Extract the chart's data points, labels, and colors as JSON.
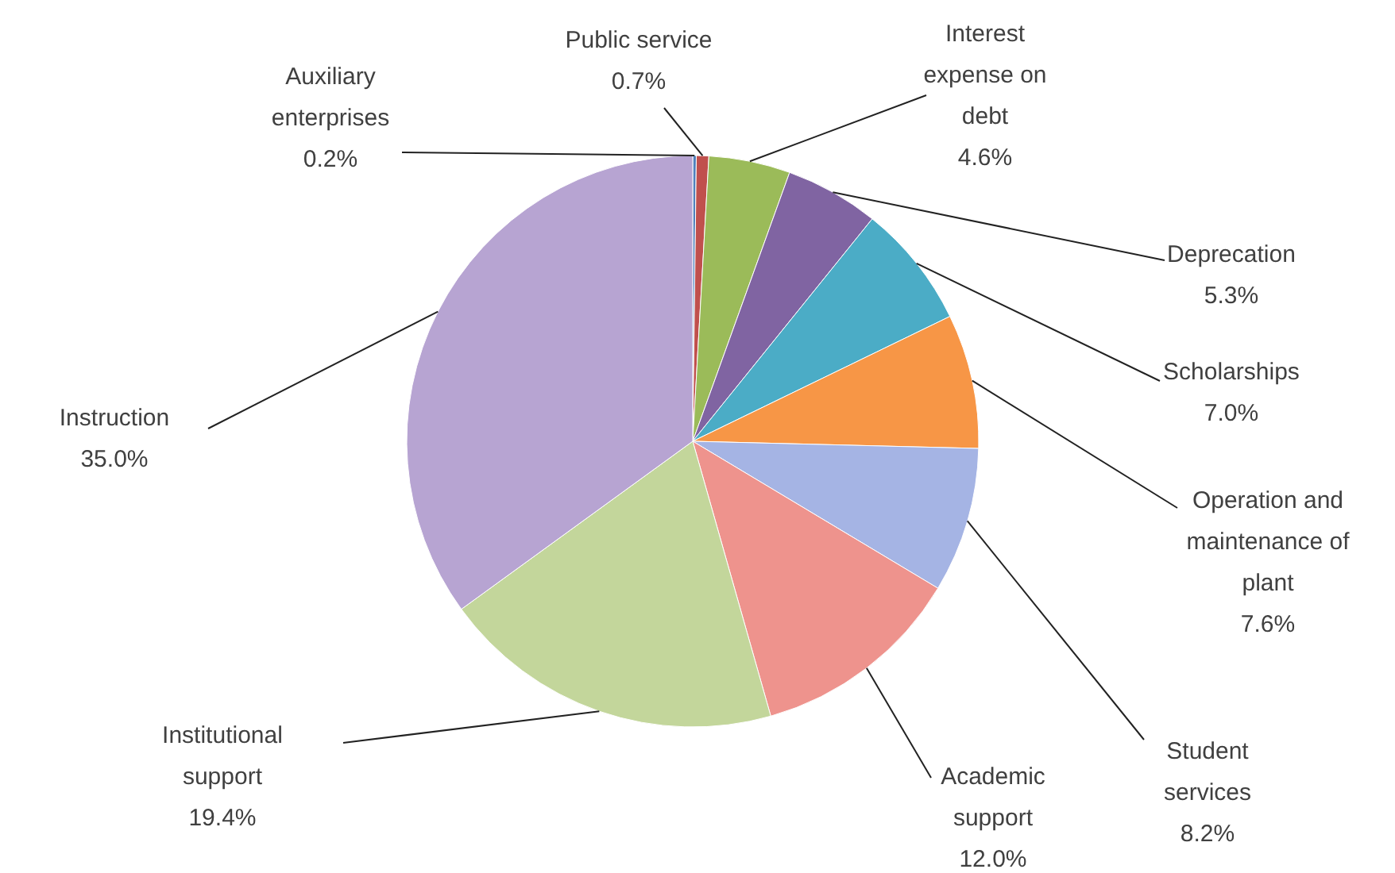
{
  "chart_data": {
    "type": "pie",
    "categories": [
      "Auxiliary enterprises",
      "Public service",
      "Interest expense on debt",
      "Deprecation",
      "Scholarships",
      "Operation and maintenance of plant",
      "Student services",
      "Academic support",
      "Institutional support",
      "Instruction"
    ],
    "values": [
      0.2,
      0.7,
      4.6,
      5.3,
      7.0,
      7.6,
      8.2,
      12.0,
      19.4,
      35.0
    ],
    "value_labels": [
      "0.2%",
      "0.7%",
      "4.6%",
      "5.3%",
      "7.0%",
      "7.6%",
      "8.2%",
      "12.0%",
      "19.4%",
      "35.0%"
    ],
    "colors": [
      "#4f81bd",
      "#c0504d",
      "#9bbb59",
      "#8064a2",
      "#4bacc6",
      "#f79646",
      "#a5b4e4",
      "#ee938d",
      "#c3d69b",
      "#b7a4d2"
    ]
  }
}
